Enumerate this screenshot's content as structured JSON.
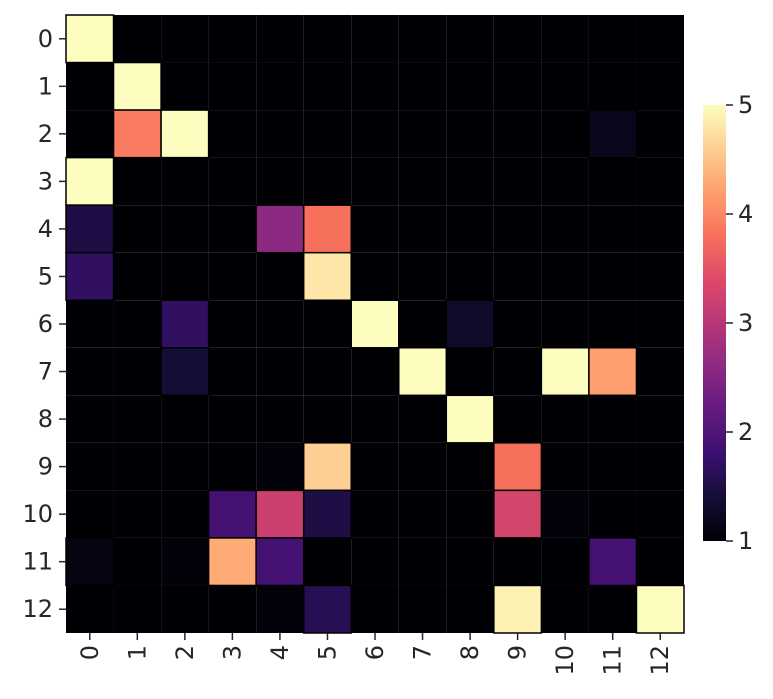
{
  "chart_data": {
    "type": "heatmap",
    "title": "",
    "xlabel": "",
    "ylabel": "",
    "x_categories": [
      "0",
      "1",
      "2",
      "3",
      "4",
      "5",
      "6",
      "7",
      "8",
      "9",
      "10",
      "11",
      "12"
    ],
    "y_categories": [
      "0",
      "1",
      "2",
      "3",
      "4",
      "5",
      "6",
      "7",
      "8",
      "9",
      "10",
      "11",
      "12"
    ],
    "colormap": "magma",
    "vmin": 1,
    "vmax": 5,
    "colorbar_ticks": [
      "1",
      "2",
      "3",
      "4",
      "5"
    ],
    "cell_edge_color": "#000000",
    "matrix": [
      [
        5,
        1,
        1,
        1,
        1,
        1,
        1,
        1,
        1,
        1,
        1,
        1,
        1
      ],
      [
        1,
        5,
        1,
        1,
        1,
        1,
        1,
        1,
        1,
        1,
        1,
        1,
        1
      ],
      [
        1,
        3.9,
        5,
        1,
        1,
        1,
        1,
        1,
        1,
        1,
        1,
        1.2,
        1
      ],
      [
        5,
        1,
        1,
        1,
        1,
        1,
        1,
        1,
        1,
        1,
        1,
        1,
        1
      ],
      [
        1.5,
        1,
        1,
        1,
        2.6,
        3.8,
        1,
        1,
        1,
        1,
        1,
        1,
        1
      ],
      [
        1.7,
        1,
        1,
        1,
        1,
        4.8,
        1,
        1,
        1,
        1,
        1,
        1,
        1
      ],
      [
        1,
        1,
        1.7,
        1,
        1,
        1,
        5,
        1,
        1.3,
        1,
        1,
        1,
        1
      ],
      [
        1,
        1,
        1.4,
        1,
        1,
        1,
        1,
        5,
        1,
        1,
        5,
        4.2,
        1
      ],
      [
        1,
        1,
        1,
        1,
        1,
        1,
        1,
        1,
        5,
        1,
        1,
        1,
        1
      ],
      [
        1,
        1,
        1,
        1,
        1.05,
        4.6,
        1,
        1,
        1,
        3.8,
        1,
        1,
        1
      ],
      [
        1,
        1,
        1,
        1.9,
        3.2,
        1.5,
        1,
        1,
        1,
        3.3,
        1.05,
        1,
        1
      ],
      [
        1.1,
        1,
        1.05,
        4.3,
        1.9,
        1,
        1,
        1,
        1,
        1,
        1,
        1.9,
        1
      ],
      [
        1,
        1,
        1,
        1,
        1.05,
        1.6,
        1,
        1,
        1,
        4.9,
        1,
        1,
        5
      ]
    ]
  }
}
